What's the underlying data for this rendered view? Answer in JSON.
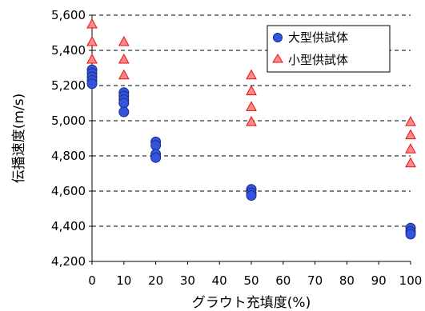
{
  "chart_data": {
    "type": "scatter",
    "xlabel": "グラウト充填度(%)",
    "ylabel": "伝播速度(m/s)",
    "xlim": [
      0,
      100
    ],
    "ylim": [
      4200,
      5600
    ],
    "x_ticks": [
      "0",
      "10",
      "20",
      "30",
      "40",
      "50",
      "60",
      "70",
      "80",
      "90",
      "100"
    ],
    "y_ticks": [
      "4,200",
      "4,400",
      "4,600",
      "4,800",
      "5,000",
      "5,200",
      "5,400",
      "5,600"
    ],
    "grid": "horizontal-dashed",
    "legend_position": "top-right",
    "series": [
      {
        "name": "大型供試体",
        "marker": "circle",
        "color": "#3355dd",
        "points": [
          {
            "x": 0,
            "y": 5290
          },
          {
            "x": 0,
            "y": 5270
          },
          {
            "x": 0,
            "y": 5250
          },
          {
            "x": 0,
            "y": 5230
          },
          {
            "x": 0,
            "y": 5210
          },
          {
            "x": 10,
            "y": 5160
          },
          {
            "x": 10,
            "y": 5140
          },
          {
            "x": 10,
            "y": 5120
          },
          {
            "x": 10,
            "y": 5100
          },
          {
            "x": 10,
            "y": 5050
          },
          {
            "x": 20,
            "y": 4880
          },
          {
            "x": 20,
            "y": 4860
          },
          {
            "x": 20,
            "y": 4810
          },
          {
            "x": 20,
            "y": 4790
          },
          {
            "x": 50,
            "y": 4610
          },
          {
            "x": 50,
            "y": 4590
          },
          {
            "x": 50,
            "y": 4575
          },
          {
            "x": 100,
            "y": 4390
          },
          {
            "x": 100,
            "y": 4370
          },
          {
            "x": 100,
            "y": 4355
          }
        ]
      },
      {
        "name": "小型供試体",
        "marker": "triangle",
        "color": "#ff8a8a",
        "points": [
          {
            "x": 0,
            "y": 5550
          },
          {
            "x": 0,
            "y": 5450
          },
          {
            "x": 0,
            "y": 5350
          },
          {
            "x": 10,
            "y": 5450
          },
          {
            "x": 10,
            "y": 5350
          },
          {
            "x": 10,
            "y": 5260
          },
          {
            "x": 50,
            "y": 5260
          },
          {
            "x": 50,
            "y": 5170
          },
          {
            "x": 50,
            "y": 5080
          },
          {
            "x": 50,
            "y": 4995
          },
          {
            "x": 100,
            "y": 4995
          },
          {
            "x": 100,
            "y": 4920
          },
          {
            "x": 100,
            "y": 4840
          },
          {
            "x": 100,
            "y": 4760
          }
        ]
      }
    ]
  }
}
